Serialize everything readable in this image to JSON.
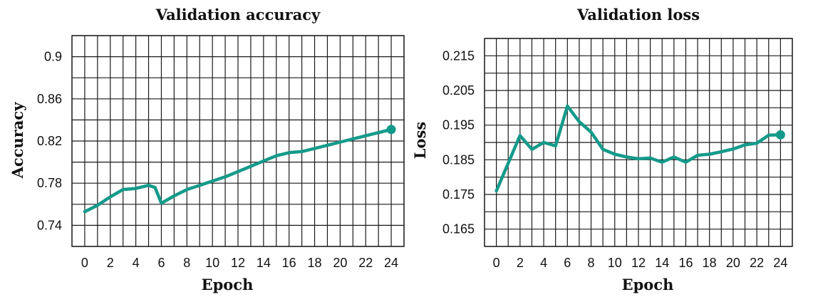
{
  "chart_data": [
    {
      "type": "line",
      "title": "Validation accuracy",
      "xlabel": "Epoch",
      "ylabel": "Accuracy",
      "xlim": [
        -1,
        25
      ],
      "ylim": [
        0.72,
        0.92
      ],
      "xticks": [
        0,
        2,
        4,
        6,
        8,
        10,
        12,
        14,
        16,
        18,
        20,
        22,
        24
      ],
      "xtick_labels": [
        "0",
        "2",
        "4",
        "6",
        "8",
        "10",
        "12",
        "14",
        "16",
        "18",
        "20",
        "22",
        "24"
      ],
      "yticks": [
        0.74,
        0.78,
        0.82,
        0.86,
        0.9
      ],
      "ytick_labels": [
        "0.74",
        "0.78",
        "0.82",
        "0.86",
        "0.9"
      ],
      "grid": true,
      "color": "#159a8a",
      "end_marker": true,
      "series": [
        {
          "x": [
            0,
            1,
            2,
            3,
            4,
            5,
            5.5,
            6,
            7,
            8,
            9,
            10,
            11,
            12,
            13,
            14,
            15,
            16,
            17,
            18,
            19,
            20,
            21,
            22,
            23,
            24
          ],
          "y": [
            0.753,
            0.759,
            0.767,
            0.774,
            0.775,
            0.778,
            0.776,
            0.761,
            0.768,
            0.774,
            0.778,
            0.782,
            0.786,
            0.791,
            0.796,
            0.801,
            0.806,
            0.809,
            0.81,
            0.813,
            0.816,
            0.819,
            0.822,
            0.825,
            0.828,
            0.831
          ]
        }
      ]
    },
    {
      "type": "line",
      "title": "Validation loss",
      "xlabel": "Epoch",
      "ylabel": "Loss",
      "xlim": [
        -1,
        25
      ],
      "ylim": [
        0.16,
        0.22
      ],
      "xticks": [
        0,
        2,
        4,
        6,
        8,
        10,
        12,
        14,
        16,
        18,
        20,
        22,
        24
      ],
      "xtick_labels": [
        "0",
        "2",
        "4",
        "6",
        "8",
        "10",
        "12",
        "14",
        "16",
        "18",
        "20",
        "22",
        "24"
      ],
      "yticks": [
        0.165,
        0.175,
        0.185,
        0.195,
        0.205,
        0.215
      ],
      "ytick_labels": [
        "0.165",
        "0.175",
        "0.185",
        "0.195",
        "0.205",
        "0.215"
      ],
      "grid": true,
      "color": "#159a8a",
      "end_marker": true,
      "series": [
        {
          "x": [
            0,
            1,
            2,
            3,
            4,
            5,
            6,
            7,
            8,
            9,
            10,
            11,
            12,
            13,
            14,
            15,
            16,
            17,
            18,
            19,
            20,
            21,
            22,
            23,
            24
          ],
          "y": [
            0.176,
            0.184,
            0.192,
            0.188,
            0.19,
            0.189,
            0.2005,
            0.196,
            0.193,
            0.188,
            0.1866,
            0.1858,
            0.1853,
            0.1855,
            0.1843,
            0.1858,
            0.1843,
            0.1863,
            0.1866,
            0.1873,
            0.1881,
            0.1893,
            0.1898,
            0.1921,
            0.1922
          ]
        }
      ]
    }
  ]
}
